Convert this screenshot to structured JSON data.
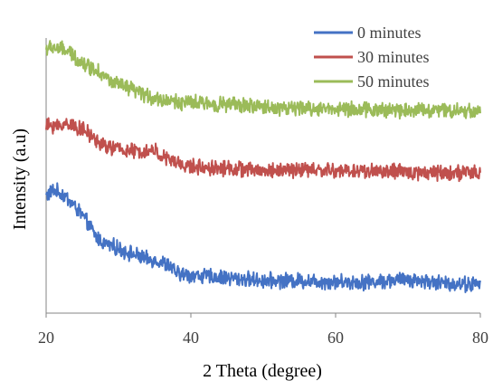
{
  "chart_data": {
    "type": "line",
    "xlabel": "2 Theta (degree)",
    "ylabel": "Intensity (a.u)",
    "xlim": [
      20,
      80
    ],
    "x_ticks": [
      20,
      40,
      60,
      80
    ],
    "x_tick_labels": [
      "20",
      "40",
      "60",
      "80"
    ],
    "y_ticks_shown": false,
    "grid": false,
    "legend_position": "top-right",
    "series": [
      {
        "name": "0 minutes",
        "color": "#4472C4",
        "points": [
          [
            20,
            0.71
          ],
          [
            21,
            0.73
          ],
          [
            22,
            0.72
          ],
          [
            23,
            0.7
          ],
          [
            24,
            0.67
          ],
          [
            25,
            0.64
          ],
          [
            26,
            0.6
          ],
          [
            27,
            0.56
          ],
          [
            28,
            0.54
          ],
          [
            29,
            0.53
          ],
          [
            30,
            0.52
          ],
          [
            31,
            0.51
          ],
          [
            32,
            0.5
          ],
          [
            33,
            0.49
          ],
          [
            34,
            0.48
          ],
          [
            35,
            0.48
          ],
          [
            36,
            0.47
          ],
          [
            37,
            0.46
          ],
          [
            38,
            0.43
          ],
          [
            40,
            0.425
          ],
          [
            42,
            0.42
          ],
          [
            45,
            0.415
          ],
          [
            50,
            0.405
          ],
          [
            55,
            0.405
          ],
          [
            60,
            0.4
          ],
          [
            65,
            0.4
          ],
          [
            70,
            0.41
          ],
          [
            75,
            0.395
          ],
          [
            80,
            0.39
          ]
        ]
      },
      {
        "name": "30 minutes",
        "color": "#C0504D",
        "points": [
          [
            20,
            0.96
          ],
          [
            21,
            0.965
          ],
          [
            22,
            0.96
          ],
          [
            23,
            0.975
          ],
          [
            24,
            0.96
          ],
          [
            25,
            0.95
          ],
          [
            26,
            0.93
          ],
          [
            27,
            0.91
          ],
          [
            28,
            0.89
          ],
          [
            30,
            0.88
          ],
          [
            32,
            0.87
          ],
          [
            34,
            0.87
          ],
          [
            35,
            0.875
          ],
          [
            36,
            0.85
          ],
          [
            37,
            0.84
          ],
          [
            38,
            0.83
          ],
          [
            39,
            0.82
          ],
          [
            40,
            0.815
          ],
          [
            45,
            0.81
          ],
          [
            50,
            0.8
          ],
          [
            55,
            0.805
          ],
          [
            60,
            0.8
          ],
          [
            65,
            0.8
          ],
          [
            70,
            0.795
          ],
          [
            75,
            0.795
          ],
          [
            80,
            0.79
          ]
        ]
      },
      {
        "name": "50 minutes",
        "color": "#9BBB59",
        "points": [
          [
            20,
            1.24
          ],
          [
            21,
            1.245
          ],
          [
            22,
            1.24
          ],
          [
            23,
            1.23
          ],
          [
            24,
            1.21
          ],
          [
            25,
            1.19
          ],
          [
            26,
            1.175
          ],
          [
            27,
            1.165
          ],
          [
            28,
            1.145
          ],
          [
            29,
            1.12
          ],
          [
            30,
            1.11
          ],
          [
            32,
            1.09
          ],
          [
            34,
            1.07
          ],
          [
            36,
            1.055
          ],
          [
            38,
            1.05
          ],
          [
            40,
            1.045
          ],
          [
            45,
            1.04
          ],
          [
            50,
            1.03
          ],
          [
            55,
            1.025
          ],
          [
            60,
            1.025
          ],
          [
            65,
            1.02
          ],
          [
            70,
            1.02
          ],
          [
            75,
            1.02
          ],
          [
            80,
            1.015
          ]
        ]
      }
    ]
  }
}
